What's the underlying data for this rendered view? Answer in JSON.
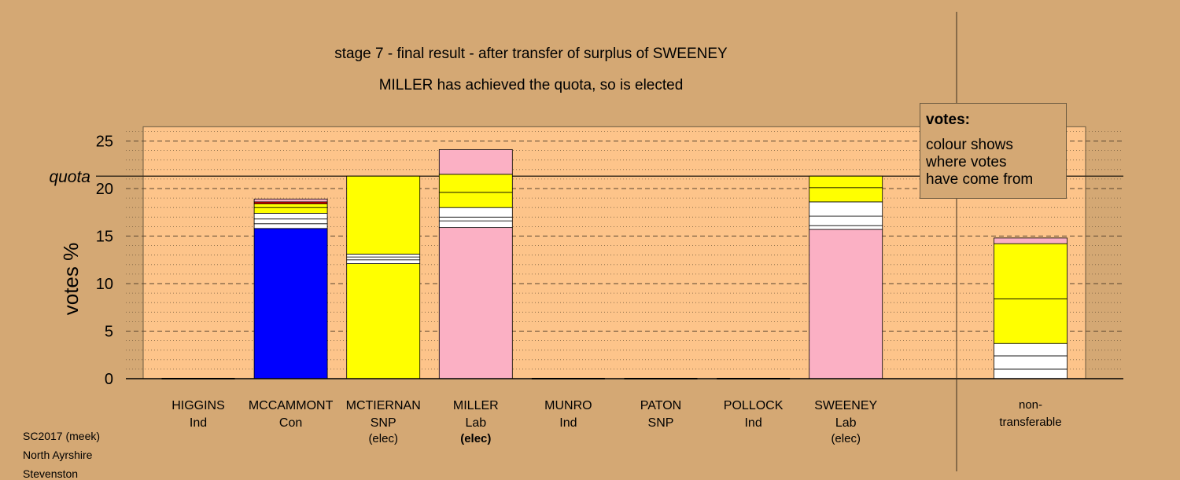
{
  "chart_data": {
    "type": "bar",
    "stacked": true,
    "title": "stage 7 - final result - after transfer of surplus of SWEENEY",
    "subtitle": "MILLER has achieved the quota, so is elected",
    "ylabel": "votes %",
    "xlabel": "",
    "ylim": [
      0,
      26.5
    ],
    "yticks": [
      0,
      5,
      10,
      15,
      20,
      25
    ],
    "quota": 21.3,
    "quota_label": "quota",
    "grid": true,
    "legend": {
      "placement": "top-right",
      "title": "votes:",
      "lines": [
        "colour shows",
        "where votes",
        "have come from"
      ]
    },
    "candidates": [
      {
        "name": "HIGGINS",
        "party": "Ind",
        "status": "",
        "segments": []
      },
      {
        "name": "MCCAMMONT",
        "party": "Con",
        "status": "",
        "segments": [
          {
            "value": 15.8,
            "color": "#0000ff"
          },
          {
            "value": 0.5,
            "color": "#ffffff"
          },
          {
            "value": 0.5,
            "color": "#ffffff"
          },
          {
            "value": 0.6,
            "color": "#ffffff"
          },
          {
            "value": 0.6,
            "color": "#ffff00"
          },
          {
            "value": 0.4,
            "color": "#ffff00"
          },
          {
            "value": 0.2,
            "color": "#ff0000"
          },
          {
            "value": 0.3,
            "color": "#fbb0c4"
          }
        ]
      },
      {
        "name": "MCTIERNAN",
        "party": "SNP",
        "status": "(elec)",
        "segments": [
          {
            "value": 12.1,
            "color": "#ffff00"
          },
          {
            "value": 0.4,
            "color": "#ffffff"
          },
          {
            "value": 0.3,
            "color": "#ffffff"
          },
          {
            "value": 0.3,
            "color": "#ffffff"
          },
          {
            "value": 8.2,
            "color": "#ffff00"
          }
        ]
      },
      {
        "name": "MILLER",
        "party": "Lab",
        "status": "(elec)",
        "segments": [
          {
            "value": 15.9,
            "color": "#fbb0c4"
          },
          {
            "value": 0.7,
            "color": "#ffffff"
          },
          {
            "value": 0.4,
            "color": "#ffffff"
          },
          {
            "value": 1.0,
            "color": "#ffffff"
          },
          {
            "value": 1.6,
            "color": "#ffff00"
          },
          {
            "value": 1.9,
            "color": "#ffff00"
          },
          {
            "value": 2.6,
            "color": "#fbb0c4"
          }
        ]
      },
      {
        "name": "MUNRO",
        "party": "Ind",
        "status": "",
        "segments": []
      },
      {
        "name": "PATON",
        "party": "SNP",
        "status": "",
        "segments": []
      },
      {
        "name": "POLLOCK",
        "party": "Ind",
        "status": "",
        "segments": []
      },
      {
        "name": "SWEENEY",
        "party": "Lab",
        "status": "(elec)",
        "segments": [
          {
            "value": 15.7,
            "color": "#fbb0c4"
          },
          {
            "value": 0.4,
            "color": "#ffffff"
          },
          {
            "value": 1.0,
            "color": "#ffffff"
          },
          {
            "value": 1.5,
            "color": "#ffffff"
          },
          {
            "value": 1.5,
            "color": "#ffff00"
          },
          {
            "value": 1.2,
            "color": "#ffff00"
          }
        ]
      }
    ],
    "non_transferable": {
      "label_lines": [
        "non-",
        "transferable"
      ],
      "segments": [
        {
          "value": 1.0,
          "color": "#ffffff"
        },
        {
          "value": 1.4,
          "color": "#ffffff"
        },
        {
          "value": 1.3,
          "color": "#ffffff"
        },
        {
          "value": 4.7,
          "color": "#ffff00"
        },
        {
          "value": 5.8,
          "color": "#ffff00"
        },
        {
          "value": 0.6,
          "color": "#fbb0c4"
        }
      ]
    },
    "colors": {
      "background": "#d4a874",
      "plot_area": "#fdc48a",
      "conservative": "#0000ff",
      "snp": "#ffff00",
      "labour": "#fbb0c4",
      "independent": "#ffffff"
    }
  },
  "info": {
    "line1": "SC2017 (meek)",
    "line2": "North Ayrshire",
    "line3": "Stevenston"
  }
}
